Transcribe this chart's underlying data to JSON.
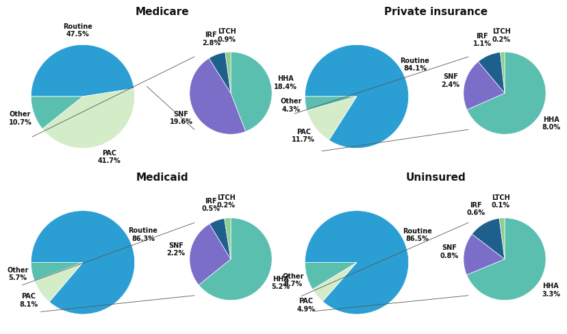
{
  "payers": [
    "Medicare",
    "Private insurance",
    "Medicaid",
    "Uninsured"
  ],
  "main_pies": [
    {
      "labels": [
        "Routine",
        "PAC",
        "Other"
      ],
      "values": [
        47.5,
        41.7,
        10.7
      ],
      "colors": [
        "#2b9fd4",
        "#d4ecc8",
        "#5bbfb0"
      ]
    },
    {
      "labels": [
        "Routine",
        "PAC",
        "Other"
      ],
      "values": [
        84.1,
        11.7,
        4.3
      ],
      "colors": [
        "#2b9fd4",
        "#d4ecc8",
        "#5bbfb0"
      ]
    },
    {
      "labels": [
        "Routine",
        "PAC",
        "Other"
      ],
      "values": [
        86.3,
        8.1,
        5.7
      ],
      "colors": [
        "#2b9fd4",
        "#d4ecc8",
        "#5bbfb0"
      ]
    },
    {
      "labels": [
        "Routine",
        "PAC",
        "Other"
      ],
      "values": [
        86.5,
        4.9,
        8.7
      ],
      "colors": [
        "#2b9fd4",
        "#d4ecc8",
        "#5bbfb0"
      ]
    }
  ],
  "pac_pies": [
    {
      "labels": [
        "HHA",
        "SNF",
        "IRF",
        "LTCH"
      ],
      "values": [
        18.4,
        19.6,
        2.8,
        0.9
      ],
      "colors": [
        "#5bbfb0",
        "#7b6ec8",
        "#1e5f8e",
        "#8ecf8e"
      ]
    },
    {
      "labels": [
        "HHA",
        "SNF",
        "IRF",
        "LTCH"
      ],
      "values": [
        8.0,
        2.4,
        1.1,
        0.2
      ],
      "colors": [
        "#5bbfb0",
        "#7b6ec8",
        "#1e5f8e",
        "#8ecf8e"
      ]
    },
    {
      "labels": [
        "HHA",
        "SNF",
        "IRF",
        "LTCH"
      ],
      "values": [
        5.2,
        2.2,
        0.5,
        0.2
      ],
      "colors": [
        "#5bbfb0",
        "#7b6ec8",
        "#1e5f8e",
        "#8ecf8e"
      ]
    },
    {
      "labels": [
        "HHA",
        "SNF",
        "IRF",
        "LTCH"
      ],
      "values": [
        3.3,
        0.8,
        0.6,
        0.1
      ],
      "colors": [
        "#5bbfb0",
        "#7b6ec8",
        "#1e5f8e",
        "#8ecf8e"
      ]
    }
  ],
  "title_fontsize": 11,
  "label_fontsize": 7.0,
  "bg_color": "#ffffff",
  "main_startangle": [
    180,
    180,
    180,
    180
  ],
  "pac_startangle": [
    90,
    90,
    90,
    90
  ]
}
